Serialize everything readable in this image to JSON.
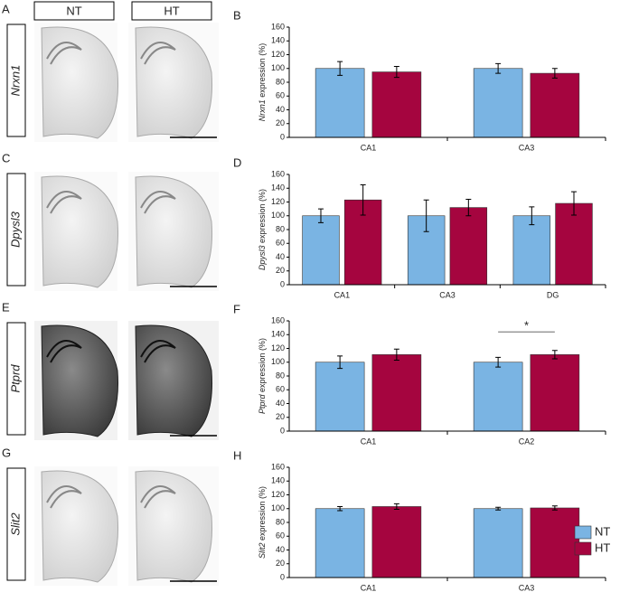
{
  "columns": [
    "NT",
    "HT"
  ],
  "image_panels": [
    {
      "letter": "A",
      "gene": "Nrxn1"
    },
    {
      "letter": "C",
      "gene": "Dpysl3"
    },
    {
      "letter": "E",
      "gene": "Ptprd"
    },
    {
      "letter": "G",
      "gene": "Slit2"
    }
  ],
  "legend": [
    {
      "name": "NT",
      "color": "#7ab4e3"
    },
    {
      "name": "HT",
      "color": "#a5053f"
    }
  ],
  "chart_data": [
    {
      "type": "bar",
      "panel": "B",
      "gene": "Nrxn1",
      "ylabel": "expression (%)",
      "categories": [
        "CA1",
        "CA3"
      ],
      "series": [
        {
          "values": [
            100,
            100
          ],
          "errors": [
            10,
            7
          ]
        },
        {
          "values": [
            95,
            93
          ],
          "errors": [
            8,
            7
          ]
        }
      ],
      "ylim": [
        0,
        160
      ],
      "yticks": [
        0,
        20,
        40,
        60,
        80,
        100,
        120,
        140,
        160
      ]
    },
    {
      "type": "bar",
      "panel": "D",
      "gene": "Dpysl3",
      "ylabel": "expression (%)",
      "categories": [
        "CA1",
        "CA3",
        "DG"
      ],
      "series": [
        {
          "values": [
            100,
            100,
            100
          ],
          "errors": [
            10,
            23,
            13
          ]
        },
        {
          "values": [
            123,
            112,
            118
          ],
          "errors": [
            22,
            12,
            17
          ]
        }
      ],
      "ylim": [
        0,
        160
      ],
      "yticks": [
        0,
        20,
        40,
        60,
        80,
        100,
        120,
        140,
        160
      ]
    },
    {
      "type": "bar",
      "panel": "F",
      "gene": "Ptprd",
      "ylabel": "expression (%)",
      "categories": [
        "CA1",
        "CA2"
      ],
      "series": [
        {
          "values": [
            100,
            100
          ],
          "errors": [
            9,
            7
          ]
        },
        {
          "values": [
            111,
            111
          ],
          "errors": [
            8,
            6
          ]
        }
      ],
      "ylim": [
        0,
        160
      ],
      "yticks": [
        0,
        20,
        40,
        60,
        80,
        100,
        120,
        140,
        160
      ],
      "annotations": [
        {
          "text": "*",
          "y": 144,
          "category": 1
        }
      ]
    },
    {
      "type": "bar",
      "panel": "H",
      "gene": "Slit2",
      "ylabel": "expression (%)",
      "categories": [
        "CA1",
        "CA3"
      ],
      "series": [
        {
          "values": [
            100,
            100
          ],
          "errors": [
            3,
            2
          ]
        },
        {
          "values": [
            103,
            101
          ],
          "errors": [
            4,
            3
          ]
        }
      ],
      "ylim": [
        0,
        160
      ],
      "yticks": [
        0,
        20,
        40,
        60,
        80,
        100,
        120,
        140,
        160
      ]
    }
  ]
}
